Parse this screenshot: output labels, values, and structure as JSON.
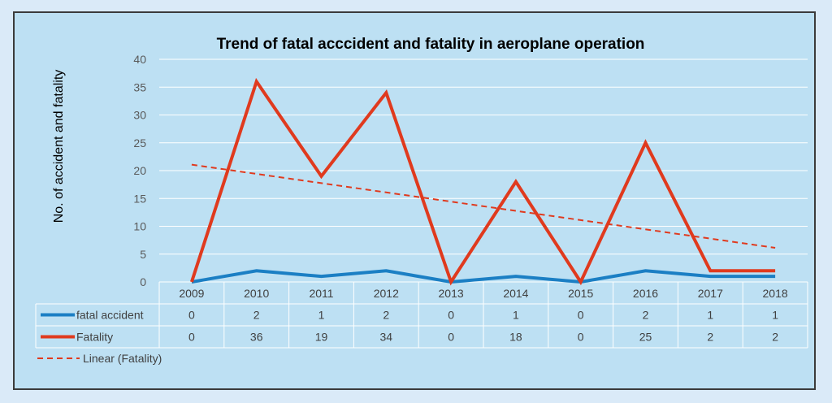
{
  "chart_data": {
    "type": "line",
    "title": "Trend of fatal acccident and fatality in aeroplane operation",
    "ylabel": "No. of accident and fatality",
    "xlabel": "",
    "ylim": [
      0,
      40
    ],
    "yticks": [
      "0",
      "5",
      "10",
      "15",
      "20",
      "25",
      "30",
      "35",
      "40"
    ],
    "categories": [
      "2009",
      "2010",
      "2011",
      "2012",
      "2013",
      "2014",
      "2015",
      "2016",
      "2017",
      "2018"
    ],
    "grid": true,
    "legend_placement": "bottom (data table)",
    "series": [
      {
        "name": "fatal accident",
        "color": "#1b7fc4",
        "values": [
          0,
          2,
          1,
          2,
          0,
          1,
          0,
          2,
          1,
          1
        ],
        "table_values": [
          "0",
          "2",
          "1",
          "2",
          "0",
          "1",
          "0",
          "2",
          "1",
          "1"
        ]
      },
      {
        "name": "Fatality",
        "color": "#e03a1e",
        "values": [
          0,
          36,
          19,
          34,
          0,
          18,
          0,
          25,
          2,
          2
        ],
        "table_values": [
          "0",
          "36",
          "19",
          "34",
          "0",
          "18",
          "0",
          "25",
          "2",
          "2"
        ]
      }
    ],
    "trendline": {
      "name": "Linear (Fatality)",
      "color": "#e03a1e",
      "style": "dashed",
      "of_series": "Fatality"
    }
  }
}
